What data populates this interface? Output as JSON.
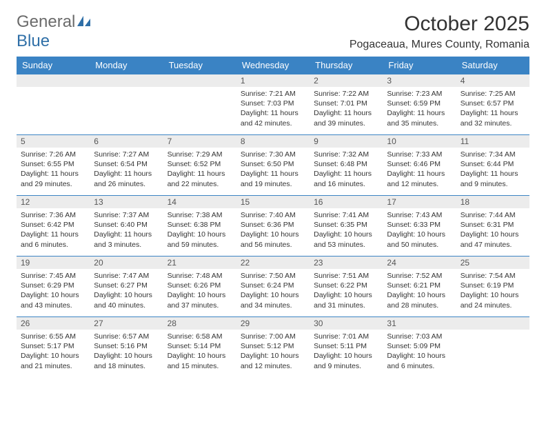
{
  "brand": {
    "word1": "General",
    "word2": "Blue"
  },
  "title": "October 2025",
  "location": "Pogaceaua, Mures County, Romania",
  "colors": {
    "header_bg": "#3a83c4",
    "header_text": "#ffffff",
    "daynum_bg": "#ececec",
    "border": "#3a83c4",
    "logo_gray": "#6b6b6b",
    "logo_blue": "#2f6fa7"
  },
  "weekdays": [
    "Sunday",
    "Monday",
    "Tuesday",
    "Wednesday",
    "Thursday",
    "Friday",
    "Saturday"
  ],
  "weeks": [
    [
      {
        "day": "",
        "lines": []
      },
      {
        "day": "",
        "lines": []
      },
      {
        "day": "",
        "lines": []
      },
      {
        "day": "1",
        "lines": [
          "Sunrise: 7:21 AM",
          "Sunset: 7:03 PM",
          "Daylight: 11 hours and 42 minutes."
        ]
      },
      {
        "day": "2",
        "lines": [
          "Sunrise: 7:22 AM",
          "Sunset: 7:01 PM",
          "Daylight: 11 hours and 39 minutes."
        ]
      },
      {
        "day": "3",
        "lines": [
          "Sunrise: 7:23 AM",
          "Sunset: 6:59 PM",
          "Daylight: 11 hours and 35 minutes."
        ]
      },
      {
        "day": "4",
        "lines": [
          "Sunrise: 7:25 AM",
          "Sunset: 6:57 PM",
          "Daylight: 11 hours and 32 minutes."
        ]
      }
    ],
    [
      {
        "day": "5",
        "lines": [
          "Sunrise: 7:26 AM",
          "Sunset: 6:55 PM",
          "Daylight: 11 hours and 29 minutes."
        ]
      },
      {
        "day": "6",
        "lines": [
          "Sunrise: 7:27 AM",
          "Sunset: 6:54 PM",
          "Daylight: 11 hours and 26 minutes."
        ]
      },
      {
        "day": "7",
        "lines": [
          "Sunrise: 7:29 AM",
          "Sunset: 6:52 PM",
          "Daylight: 11 hours and 22 minutes."
        ]
      },
      {
        "day": "8",
        "lines": [
          "Sunrise: 7:30 AM",
          "Sunset: 6:50 PM",
          "Daylight: 11 hours and 19 minutes."
        ]
      },
      {
        "day": "9",
        "lines": [
          "Sunrise: 7:32 AM",
          "Sunset: 6:48 PM",
          "Daylight: 11 hours and 16 minutes."
        ]
      },
      {
        "day": "10",
        "lines": [
          "Sunrise: 7:33 AM",
          "Sunset: 6:46 PM",
          "Daylight: 11 hours and 12 minutes."
        ]
      },
      {
        "day": "11",
        "lines": [
          "Sunrise: 7:34 AM",
          "Sunset: 6:44 PM",
          "Daylight: 11 hours and 9 minutes."
        ]
      }
    ],
    [
      {
        "day": "12",
        "lines": [
          "Sunrise: 7:36 AM",
          "Sunset: 6:42 PM",
          "Daylight: 11 hours and 6 minutes."
        ]
      },
      {
        "day": "13",
        "lines": [
          "Sunrise: 7:37 AM",
          "Sunset: 6:40 PM",
          "Daylight: 11 hours and 3 minutes."
        ]
      },
      {
        "day": "14",
        "lines": [
          "Sunrise: 7:38 AM",
          "Sunset: 6:38 PM",
          "Daylight: 10 hours and 59 minutes."
        ]
      },
      {
        "day": "15",
        "lines": [
          "Sunrise: 7:40 AM",
          "Sunset: 6:36 PM",
          "Daylight: 10 hours and 56 minutes."
        ]
      },
      {
        "day": "16",
        "lines": [
          "Sunrise: 7:41 AM",
          "Sunset: 6:35 PM",
          "Daylight: 10 hours and 53 minutes."
        ]
      },
      {
        "day": "17",
        "lines": [
          "Sunrise: 7:43 AM",
          "Sunset: 6:33 PM",
          "Daylight: 10 hours and 50 minutes."
        ]
      },
      {
        "day": "18",
        "lines": [
          "Sunrise: 7:44 AM",
          "Sunset: 6:31 PM",
          "Daylight: 10 hours and 47 minutes."
        ]
      }
    ],
    [
      {
        "day": "19",
        "lines": [
          "Sunrise: 7:45 AM",
          "Sunset: 6:29 PM",
          "Daylight: 10 hours and 43 minutes."
        ]
      },
      {
        "day": "20",
        "lines": [
          "Sunrise: 7:47 AM",
          "Sunset: 6:27 PM",
          "Daylight: 10 hours and 40 minutes."
        ]
      },
      {
        "day": "21",
        "lines": [
          "Sunrise: 7:48 AM",
          "Sunset: 6:26 PM",
          "Daylight: 10 hours and 37 minutes."
        ]
      },
      {
        "day": "22",
        "lines": [
          "Sunrise: 7:50 AM",
          "Sunset: 6:24 PM",
          "Daylight: 10 hours and 34 minutes."
        ]
      },
      {
        "day": "23",
        "lines": [
          "Sunrise: 7:51 AM",
          "Sunset: 6:22 PM",
          "Daylight: 10 hours and 31 minutes."
        ]
      },
      {
        "day": "24",
        "lines": [
          "Sunrise: 7:52 AM",
          "Sunset: 6:21 PM",
          "Daylight: 10 hours and 28 minutes."
        ]
      },
      {
        "day": "25",
        "lines": [
          "Sunrise: 7:54 AM",
          "Sunset: 6:19 PM",
          "Daylight: 10 hours and 24 minutes."
        ]
      }
    ],
    [
      {
        "day": "26",
        "lines": [
          "Sunrise: 6:55 AM",
          "Sunset: 5:17 PM",
          "Daylight: 10 hours and 21 minutes."
        ]
      },
      {
        "day": "27",
        "lines": [
          "Sunrise: 6:57 AM",
          "Sunset: 5:16 PM",
          "Daylight: 10 hours and 18 minutes."
        ]
      },
      {
        "day": "28",
        "lines": [
          "Sunrise: 6:58 AM",
          "Sunset: 5:14 PM",
          "Daylight: 10 hours and 15 minutes."
        ]
      },
      {
        "day": "29",
        "lines": [
          "Sunrise: 7:00 AM",
          "Sunset: 5:12 PM",
          "Daylight: 10 hours and 12 minutes."
        ]
      },
      {
        "day": "30",
        "lines": [
          "Sunrise: 7:01 AM",
          "Sunset: 5:11 PM",
          "Daylight: 10 hours and 9 minutes."
        ]
      },
      {
        "day": "31",
        "lines": [
          "Sunrise: 7:03 AM",
          "Sunset: 5:09 PM",
          "Daylight: 10 hours and 6 minutes."
        ]
      },
      {
        "day": "",
        "lines": []
      }
    ]
  ]
}
